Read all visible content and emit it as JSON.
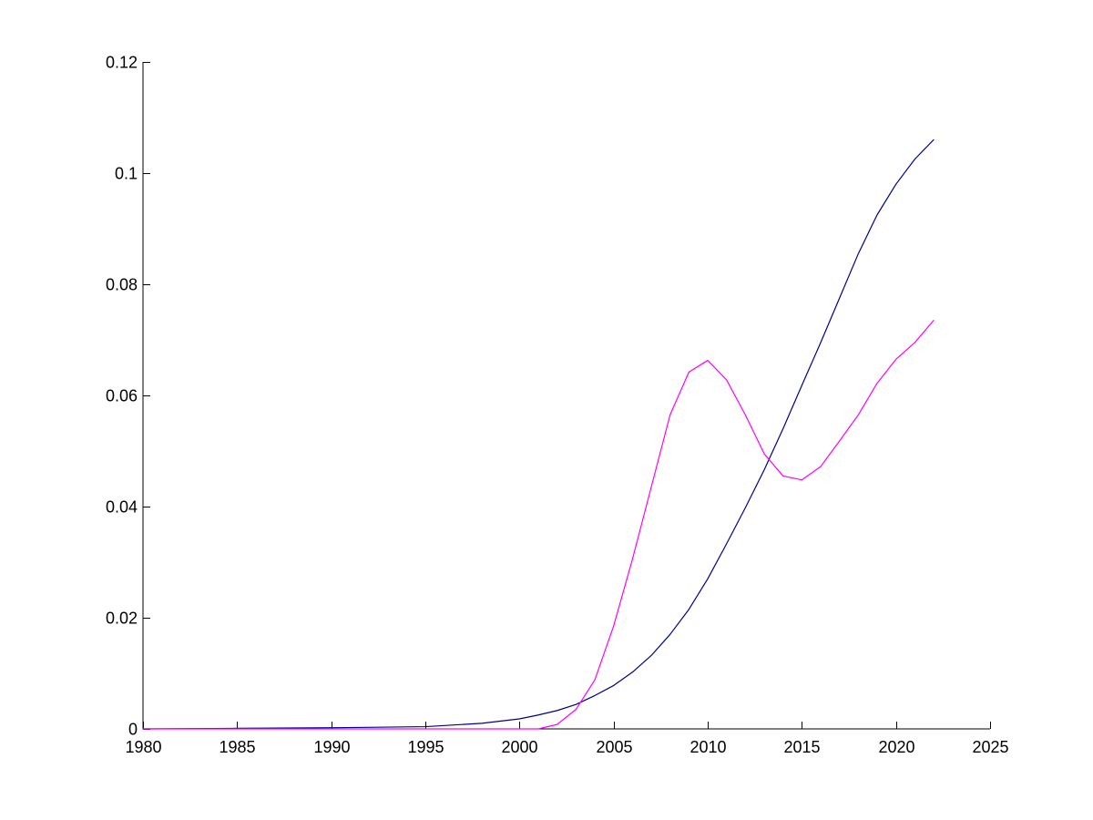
{
  "chart_data": {
    "type": "line",
    "title": "",
    "xlabel": "",
    "ylabel": "",
    "xlim": [
      1980,
      2025
    ],
    "ylim": [
      0,
      0.12
    ],
    "x_ticks": [
      1980,
      1985,
      1990,
      1995,
      2000,
      2005,
      2010,
      2015,
      2020,
      2025
    ],
    "x_tick_labels": [
      "1980",
      "1985",
      "1990",
      "1995",
      "2000",
      "2005",
      "2010",
      "2015",
      "2020",
      "2025"
    ],
    "y_ticks": [
      0,
      0.02,
      0.04,
      0.06,
      0.08,
      0.1,
      0.12
    ],
    "y_tick_labels": [
      "0",
      "0.02",
      "0.04",
      "0.06",
      "0.08",
      "0.1",
      "0.12"
    ],
    "grid": false,
    "legend": "none",
    "series": [
      {
        "color": "#00008b",
        "x": [
          1980,
          1985,
          1990,
          1995,
          1998,
          2000,
          2001,
          2002,
          2003,
          2004,
          2005,
          2006,
          2007,
          2008,
          2009,
          2010,
          2011,
          2012,
          2013,
          2014,
          2015,
          2016,
          2017,
          2018,
          2019,
          2020,
          2021,
          2022
        ],
        "values": [
          0.0,
          0.0001,
          0.0002,
          0.0004,
          0.001,
          0.0018,
          0.0025,
          0.0033,
          0.0044,
          0.006,
          0.0078,
          0.0102,
          0.0132,
          0.017,
          0.0215,
          0.027,
          0.0333,
          0.0398,
          0.0466,
          0.054,
          0.0618,
          0.0695,
          0.0775,
          0.0855,
          0.0925,
          0.098,
          0.1025,
          0.106
        ]
      },
      {
        "color": "#ff00ff",
        "x": [
          1980,
          1987,
          2001,
          2002,
          2003,
          2004,
          2005,
          2006,
          2007,
          2008,
          2009,
          2010,
          2011,
          2012,
          2013,
          2014,
          2015,
          2016,
          2017,
          2018,
          2019,
          2020,
          2021,
          2022
        ],
        "values": [
          0.0,
          0.0,
          0.0,
          0.0008,
          0.0035,
          0.0088,
          0.0185,
          0.0305,
          0.0435,
          0.0565,
          0.0642,
          0.0663,
          0.0628,
          0.0565,
          0.0495,
          0.0455,
          0.0448,
          0.0472,
          0.0518,
          0.0565,
          0.0622,
          0.0665,
          0.0695,
          0.0735
        ]
      }
    ]
  }
}
